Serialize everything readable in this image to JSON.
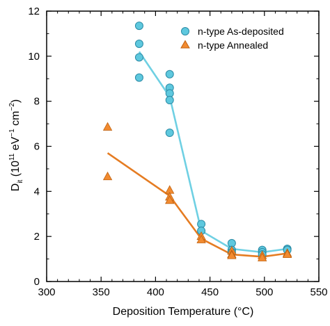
{
  "chart_data": {
    "type": "scatter",
    "title": "",
    "xlabel": "Deposition Temperature (°C)",
    "ylabel": {
      "main": "D",
      "sub": "it",
      "open": " (10",
      "exp1": "11",
      "mid": " eV",
      "exp2": "−1",
      "mid2": " cm",
      "exp3": "−2",
      "close": ")"
    },
    "xlim": [
      300,
      550
    ],
    "ylim": [
      0,
      12
    ],
    "xticks": [
      300,
      350,
      400,
      450,
      500,
      550
    ],
    "yticks": [
      0,
      2,
      4,
      6,
      8,
      10,
      12
    ],
    "grid": false,
    "legend_position": "top-right",
    "series": [
      {
        "name": "n-type As-deposited",
        "marker": "circle",
        "color": "#5ec8de",
        "edge": "#2a8aa5",
        "line_color": "#6fd0e3",
        "points": [
          [
            385,
            11.35
          ],
          [
            385,
            10.55
          ],
          [
            385,
            9.95
          ],
          [
            385,
            9.05
          ],
          [
            413,
            9.2
          ],
          [
            413,
            8.6
          ],
          [
            413,
            8.35
          ],
          [
            413,
            8.05
          ],
          [
            413,
            6.6
          ],
          [
            442,
            2.55
          ],
          [
            442,
            2.25
          ],
          [
            470,
            1.7
          ],
          [
            470,
            1.4
          ],
          [
            470,
            1.3
          ],
          [
            498,
            1.4
          ],
          [
            498,
            1.3
          ],
          [
            498,
            1.2
          ],
          [
            521,
            1.45
          ],
          [
            521,
            1.4
          ]
        ],
        "fit": [
          [
            385,
            10.2
          ],
          [
            413,
            8.2
          ],
          [
            442,
            2.25
          ],
          [
            470,
            1.45
          ],
          [
            498,
            1.3
          ],
          [
            521,
            1.45
          ]
        ]
      },
      {
        "name": "n-type Annealed",
        "marker": "triangle",
        "color": "#f28b30",
        "edge": "#c0610f",
        "line_color": "#e57c22",
        "points": [
          [
            356,
            6.85
          ],
          [
            356,
            4.65
          ],
          [
            413,
            4.05
          ],
          [
            413,
            3.75
          ],
          [
            413,
            3.6
          ],
          [
            442,
            2.0
          ],
          [
            442,
            1.85
          ],
          [
            470,
            1.35
          ],
          [
            470,
            1.2
          ],
          [
            470,
            1.15
          ],
          [
            498,
            1.15
          ],
          [
            498,
            1.05
          ],
          [
            521,
            1.25
          ],
          [
            521,
            1.2
          ]
        ],
        "fit": [
          [
            356,
            5.7
          ],
          [
            413,
            3.8
          ],
          [
            442,
            1.9
          ],
          [
            470,
            1.2
          ],
          [
            498,
            1.1
          ],
          [
            521,
            1.25
          ]
        ]
      }
    ]
  }
}
